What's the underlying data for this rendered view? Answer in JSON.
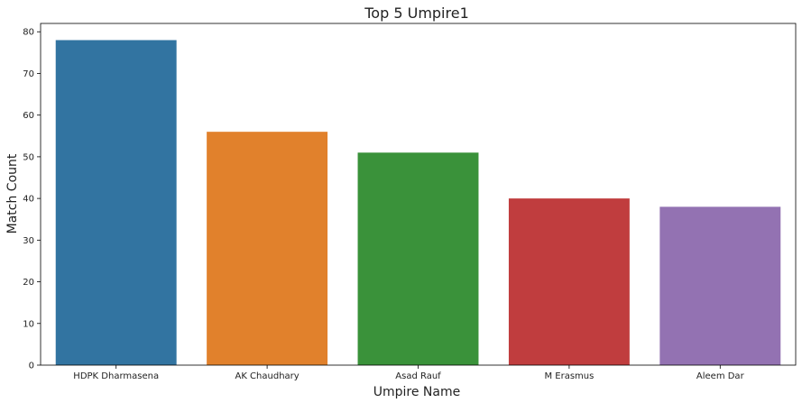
{
  "chart_data": {
    "type": "bar",
    "title": "Top 5 Umpire1",
    "xlabel": "Umpire Name",
    "ylabel": "Match Count",
    "categories": [
      "HDPK Dharmasena",
      "AK Chaudhary",
      "Asad Rauf",
      "M Erasmus",
      "Aleem Dar"
    ],
    "values": [
      78,
      56,
      51,
      40,
      38
    ],
    "colors": [
      "#3274a1",
      "#e1812c",
      "#3a923a",
      "#c03d3e",
      "#9372b2"
    ],
    "ylim": [
      0,
      82
    ],
    "yticks": [
      0,
      10,
      20,
      30,
      40,
      50,
      60,
      70,
      80
    ],
    "grid": false,
    "legend": "none"
  }
}
